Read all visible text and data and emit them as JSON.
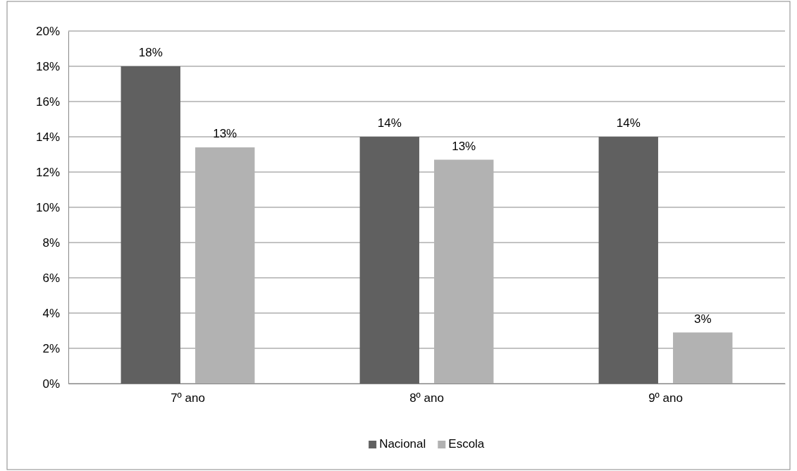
{
  "chart_data": {
    "type": "bar",
    "categories": [
      "7º ano",
      "8º ano",
      "9º ano"
    ],
    "series": [
      {
        "name": "Nacional",
        "color": "#606060",
        "values": [
          18,
          14,
          14
        ],
        "value_labels": [
          "18%",
          "14%",
          "14%"
        ]
      },
      {
        "name": "Escola",
        "color": "#b2b2b2",
        "values": [
          13.4,
          12.7,
          2.9
        ],
        "value_labels": [
          "13%",
          "13%",
          "3%"
        ]
      }
    ],
    "ylim": [
      0,
      20
    ],
    "yticks": [
      {
        "value": 0,
        "label": "0%"
      },
      {
        "value": 2,
        "label": "2%"
      },
      {
        "value": 4,
        "label": "4%"
      },
      {
        "value": 6,
        "label": "6%"
      },
      {
        "value": 8,
        "label": "8%"
      },
      {
        "value": 10,
        "label": "10%"
      },
      {
        "value": 12,
        "label": "12%"
      },
      {
        "value": 14,
        "label": "14%"
      },
      {
        "value": 16,
        "label": "16%"
      },
      {
        "value": 18,
        "label": "18%"
      },
      {
        "value": 20,
        "label": "20%"
      }
    ],
    "grid": "y",
    "legend": "bottom"
  }
}
